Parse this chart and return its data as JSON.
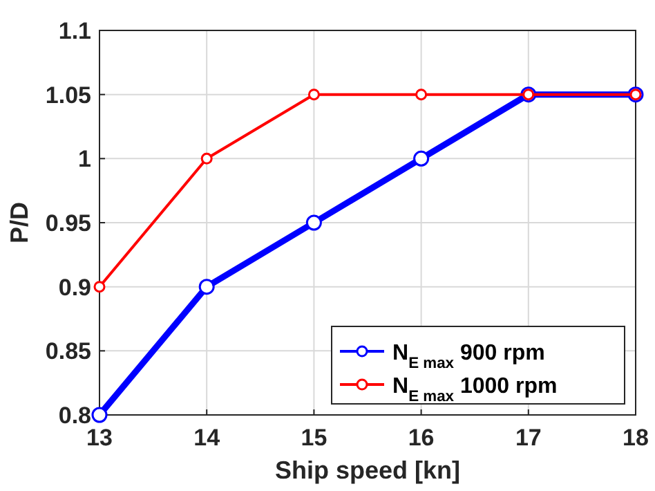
{
  "chart_data": {
    "type": "line",
    "xlabel": "Ship speed [kn]",
    "ylabel": "P/D",
    "x": [
      13,
      14,
      15,
      16,
      17,
      18
    ],
    "series": [
      {
        "name": "N$_{E max}$ 900 rpm",
        "color": "#0000ff",
        "values": [
          0.8,
          0.9,
          0.95,
          1.0,
          1.05,
          1.05
        ]
      },
      {
        "name": "N$_{E max}$ 1000 rpm",
        "color": "#ff0000",
        "values": [
          0.9,
          1.0,
          1.05,
          1.05,
          1.05,
          1.05
        ]
      }
    ],
    "xlim": [
      13,
      18
    ],
    "xticks": [
      13,
      14,
      15,
      16,
      17,
      18
    ],
    "ylim": [
      0.8,
      1.1
    ],
    "yticks": [
      0.8,
      0.85,
      0.9,
      0.95,
      1,
      1.05,
      1.1
    ],
    "grid": true,
    "legend": "bottom right",
    "marker": "circle",
    "line_style": "solid"
  }
}
